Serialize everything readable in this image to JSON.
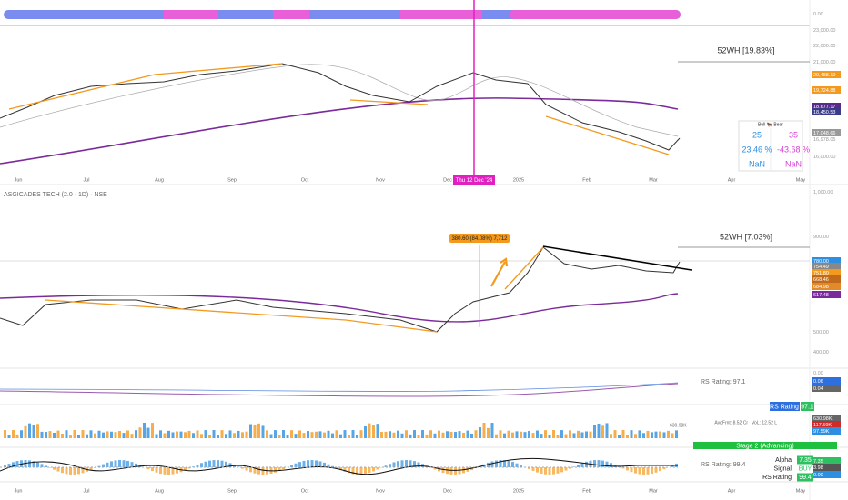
{
  "price_panel": {
    "axis_labels": [
      "0.00",
      "23,000.00",
      "22,000.00",
      "21,000.00",
      "20,488.10",
      "19,724.88",
      "18,677.17",
      "18,450.53",
      "17,048.66",
      "16,978.05",
      "16,000.00"
    ],
    "high_label": "52WH [19.83%]",
    "crosshair_date": "Thu 12 Dec '24"
  },
  "table": {
    "header": "Bull 🐂 Bear",
    "rows": [
      [
        "25",
        "35"
      ],
      [
        "23.46 %",
        "-43.68 %"
      ],
      [
        "NaN",
        "NaN"
      ]
    ]
  },
  "stock_panel": {
    "title": "ASGICADES TECH (2.0 · 1D) · NSE",
    "axis_labels": [
      "1,000.00",
      "900.00",
      "780.00",
      "754.49",
      "751.80",
      "668.46",
      "684.98",
      "617.48",
      "500.00",
      "400.00"
    ],
    "annotation": "380.60 (84.08%) 7,712",
    "high_label": "52WH [7.03%]"
  },
  "rs_panel": {
    "label": "RS Rating: 97.1",
    "axis_labels": [
      "0.00",
      "0.06",
      "0.04"
    ],
    "badge_name": "RS Rating",
    "badge_value": "97.1"
  },
  "volume_panel": {
    "axis_labels": [
      "630.98K",
      "117.59K",
      "97.59K"
    ],
    "turnover": "AvgFrnt: 8.52 Cr",
    "volume": "VoL: 12.52 L",
    "peak": "630.98K"
  },
  "stage": "Stage 2 (Advancing)",
  "alpha_panel": {
    "label": "RS Rating: 99.4",
    "axis_labels": [
      "7.35",
      "3.98",
      "0.00"
    ],
    "rows": [
      [
        "Alpha",
        "7.35"
      ],
      [
        "Signal",
        "BUY"
      ],
      [
        "RS Rating",
        "99.4"
      ]
    ]
  },
  "x_axis": [
    "Jun",
    "Jul",
    "Aug",
    "Sep",
    "Oct",
    "Nov",
    "Dec",
    "2025",
    "Feb",
    "Mar",
    "Apr",
    "May"
  ]
}
